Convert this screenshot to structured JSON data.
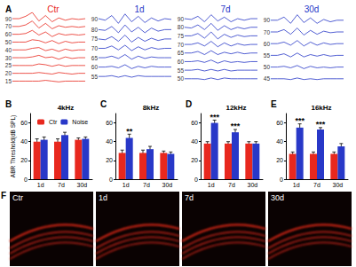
{
  "chart_data": [
    {
      "type": "line",
      "panel": "A",
      "title": "Ctr",
      "color": "#e8281e",
      "tick_labels": false,
      "grid": false,
      "x": [
        0,
        1,
        2,
        3,
        4,
        5,
        6,
        7,
        8,
        9,
        10,
        11
      ],
      "xlim": [
        0,
        11
      ],
      "ylim": [
        0,
        100
      ],
      "series": [
        {
          "name": "90",
          "values": [
            92,
            92,
            95,
            100,
            89,
            96,
            88,
            93,
            90,
            92,
            91,
            92
          ]
        },
        {
          "name": "70",
          "values": [
            82,
            82,
            84,
            89,
            80,
            86,
            79,
            83,
            81,
            82,
            81,
            82
          ]
        },
        {
          "name": "60",
          "values": [
            72,
            72,
            73,
            77,
            71,
            75,
            69,
            73,
            71,
            72,
            71,
            72
          ]
        },
        {
          "name": "50",
          "values": [
            62,
            62,
            62,
            65,
            64,
            61,
            64,
            60,
            63,
            61,
            62,
            62
          ]
        },
        {
          "name": "40",
          "values": [
            52,
            52,
            52,
            54,
            55,
            51,
            53,
            50,
            53,
            51,
            52,
            52
          ]
        },
        {
          "name": "30",
          "values": [
            42,
            42,
            42,
            43,
            45,
            42,
            43,
            40,
            43,
            41,
            42,
            42
          ]
        },
        {
          "name": "25",
          "values": [
            32,
            32,
            32,
            32,
            34,
            33,
            31,
            33,
            31,
            32,
            32,
            32
          ]
        },
        {
          "name": "20",
          "values": [
            22,
            22,
            22,
            22,
            23,
            22,
            21,
            23,
            22,
            21,
            22,
            22
          ]
        },
        {
          "name": "15",
          "values": [
            12,
            12,
            12,
            12,
            12,
            13,
            12,
            11,
            12,
            12,
            12,
            12
          ]
        }
      ]
    },
    {
      "type": "line",
      "title": "1d",
      "color": "#2838c8",
      "tick_labels": false,
      "grid": false,
      "x": [
        0,
        1,
        2,
        3,
        4,
        5,
        6,
        7,
        8,
        9,
        10,
        11
      ],
      "xlim": [
        0,
        11
      ],
      "ylim": [
        0,
        100
      ],
      "series": [
        {
          "name": "90",
          "values": [
            92,
            90,
            96,
            86,
            98,
            88,
            95,
            87,
            93,
            89,
            92,
            91
          ]
        },
        {
          "name": "80",
          "values": [
            78,
            77,
            82,
            74,
            84,
            75,
            81,
            74,
            80,
            76,
            78,
            78
          ]
        },
        {
          "name": "75",
          "values": [
            66,
            65,
            69,
            63,
            71,
            62,
            68,
            63,
            67,
            64,
            66,
            66
          ]
        },
        {
          "name": "70",
          "values": [
            54,
            54,
            57,
            52,
            58,
            51,
            56,
            52,
            55,
            53,
            54,
            54
          ]
        },
        {
          "name": "65",
          "values": [
            42,
            42,
            44,
            41,
            46,
            40,
            44,
            41,
            43,
            42,
            42,
            42
          ]
        },
        {
          "name": "60",
          "values": [
            30,
            30,
            31,
            29,
            33,
            28,
            31,
            29,
            31,
            30,
            30,
            30
          ]
        },
        {
          "name": "55",
          "values": [
            18,
            18,
            19,
            17,
            19,
            17,
            19,
            18,
            18,
            18,
            18,
            18
          ]
        }
      ]
    },
    {
      "type": "line",
      "title": "7d",
      "color": "#2838c8",
      "tick_labels": false,
      "grid": false,
      "x": [
        0,
        1,
        2,
        3,
        4,
        5,
        6,
        7,
        8,
        9,
        10,
        11
      ],
      "xlim": [
        0,
        11
      ],
      "ylim": [
        0,
        100
      ],
      "series": [
        {
          "name": "90",
          "values": [
            92,
            91,
            95,
            88,
            97,
            89,
            94,
            88,
            92,
            90,
            92,
            92
          ]
        },
        {
          "name": "80",
          "values": [
            81,
            80,
            84,
            78,
            86,
            77,
            83,
            78,
            81,
            79,
            81,
            81
          ]
        },
        {
          "name": "75",
          "values": [
            70,
            70,
            73,
            67,
            75,
            66,
            72,
            68,
            71,
            69,
            70,
            70
          ]
        },
        {
          "name": "70",
          "values": [
            59,
            59,
            61,
            57,
            63,
            56,
            61,
            57,
            60,
            58,
            59,
            59
          ]
        },
        {
          "name": "65",
          "values": [
            48,
            48,
            50,
            46,
            51,
            46,
            49,
            47,
            49,
            47,
            48,
            48
          ]
        },
        {
          "name": "60",
          "values": [
            37,
            37,
            38,
            36,
            39,
            35,
            38,
            36,
            37,
            36,
            37,
            37
          ]
        },
        {
          "name": "55",
          "values": [
            26,
            26,
            27,
            25,
            27,
            25,
            27,
            25,
            26,
            26,
            26,
            26
          ]
        },
        {
          "name": "50",
          "values": [
            15,
            15,
            15,
            14,
            16,
            14,
            16,
            15,
            15,
            15,
            15,
            15
          ]
        }
      ]
    },
    {
      "type": "line",
      "title": "30d",
      "color": "#2838c8",
      "tick_labels": false,
      "grid": false,
      "x": [
        0,
        1,
        2,
        3,
        4,
        5,
        6,
        7,
        8,
        9,
        10,
        11
      ],
      "xlim": [
        0,
        11
      ],
      "ylim": [
        0,
        100
      ],
      "series": [
        {
          "name": "90",
          "values": [
            90,
            90,
            94,
            86,
            97,
            87,
            93,
            86,
            91,
            88,
            90,
            90
          ]
        },
        {
          "name": "70",
          "values": [
            75,
            75,
            78,
            72,
            80,
            71,
            77,
            72,
            76,
            74,
            75,
            75
          ]
        },
        {
          "name": "60",
          "values": [
            60,
            60,
            62,
            58,
            64,
            57,
            62,
            58,
            61,
            59,
            60,
            60
          ]
        },
        {
          "name": "55",
          "values": [
            45,
            45,
            47,
            43,
            48,
            43,
            46,
            44,
            46,
            44,
            45,
            45
          ]
        },
        {
          "name": "50",
          "values": [
            30,
            30,
            31,
            29,
            32,
            28,
            31,
            29,
            30,
            29,
            30,
            30
          ]
        },
        {
          "name": "45",
          "values": [
            15,
            15,
            15,
            14,
            16,
            14,
            15,
            14,
            15,
            15,
            15,
            15
          ]
        }
      ]
    },
    {
      "type": "bar",
      "panel": "B",
      "title": "4kHz",
      "y_label": "ABR Threshold(dB SPL)",
      "legend": "upper left",
      "grid": false,
      "categories": [
        "1d",
        "7d",
        "30d"
      ],
      "ylim": [
        0,
        70
      ],
      "yticks": [
        0,
        20,
        40,
        60
      ],
      "series": [
        {
          "name": "Ctr",
          "color": "#e8281e",
          "values": [
            40,
            40,
            42
          ],
          "errors": [
            3,
            3,
            2
          ]
        },
        {
          "name": "Noise",
          "color": "#2838c8",
          "values": [
            42,
            47,
            43
          ],
          "errors": [
            3,
            3,
            2
          ]
        }
      ]
    },
    {
      "type": "bar",
      "panel": "C",
      "title": "8kHz",
      "grid": false,
      "categories": [
        "1d",
        "7d",
        "30d"
      ],
      "ylim": [
        0,
        70
      ],
      "yticks": [
        0,
        20,
        40,
        60
      ],
      "series": [
        {
          "name": "Ctr",
          "color": "#e8281e",
          "values": [
            28,
            28,
            28
          ],
          "errors": [
            3,
            3,
            2
          ]
        },
        {
          "name": "Noise",
          "color": "#2838c8",
          "values": [
            44,
            32,
            27
          ],
          "errors": [
            4,
            3,
            2
          ]
        }
      ],
      "annotations": [
        {
          "x": "1d",
          "series": "Noise",
          "text": "**"
        }
      ]
    },
    {
      "type": "bar",
      "panel": "D",
      "title": "12kHz",
      "grid": false,
      "categories": [
        "1d",
        "7d",
        "30d"
      ],
      "ylim": [
        0,
        70
      ],
      "yticks": [
        0,
        20,
        40,
        60
      ],
      "series": [
        {
          "name": "Ctr",
          "color": "#e8281e",
          "values": [
            38,
            38,
            38
          ],
          "errors": [
            2,
            2,
            2
          ]
        },
        {
          "name": "Noise",
          "color": "#2838c8",
          "values": [
            60,
            50,
            38
          ],
          "errors": [
            3,
            3,
            2
          ]
        }
      ],
      "annotations": [
        {
          "x": "1d",
          "series": "Noise",
          "text": "***"
        },
        {
          "x": "7d",
          "series": "Noise",
          "text": "***"
        }
      ]
    },
    {
      "type": "bar",
      "panel": "E",
      "title": "16kHz",
      "grid": false,
      "categories": [
        "1d",
        "7d",
        "30d"
      ],
      "ylim": [
        0,
        70
      ],
      "yticks": [
        0,
        20,
        40,
        60
      ],
      "series": [
        {
          "name": "Ctr",
          "color": "#e8281e",
          "values": [
            27,
            27,
            27
          ],
          "errors": [
            2,
            2,
            2
          ]
        },
        {
          "name": "Noise",
          "color": "#2838c8",
          "values": [
            55,
            53,
            35
          ],
          "errors": [
            4,
            2,
            3
          ]
        }
      ],
      "annotations": [
        {
          "x": "1d",
          "series": "Noise",
          "text": "***"
        },
        {
          "x": "7d",
          "series": "Noise",
          "text": "***"
        }
      ]
    }
  ],
  "images": {
    "panel": "F",
    "labels": [
      "Ctr",
      "1d",
      "7d",
      "30d"
    ]
  }
}
